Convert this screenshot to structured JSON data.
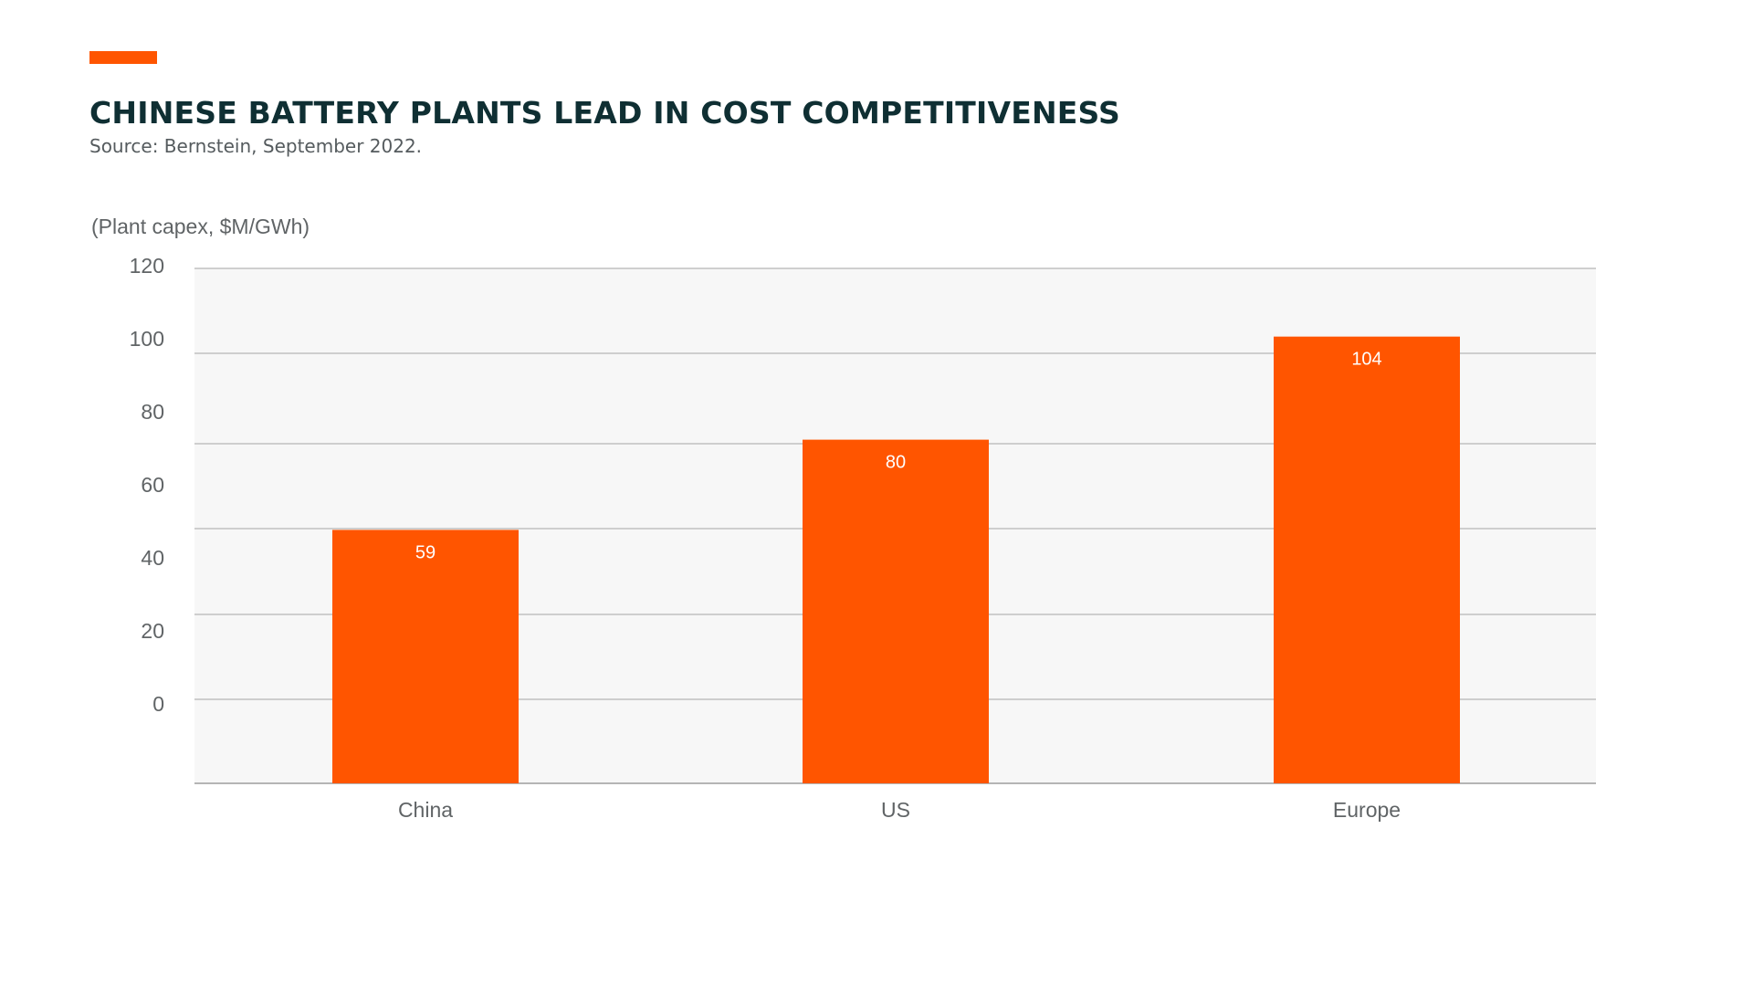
{
  "header": {
    "title": "CHINESE BATTERY PLANTS LEAD IN COST COMPETITIVENESS",
    "source": "Source: Bernstein, September 2022."
  },
  "colors": {
    "accent": "#ff5500",
    "bar": "#ff5500",
    "title": "#0f2f33",
    "plot_background": "#f7f7f7",
    "gridline": "#b5b5b5",
    "tick_text": "#606466",
    "data_label_text": "#ffffff"
  },
  "chart_data": {
    "type": "bar",
    "title": "CHINESE BATTERY PLANTS LEAD IN COST COMPETITIVENESS",
    "subtitle": "Source: Bernstein, September 2022.",
    "ylabel": "(Plant capex, $M/GWh)",
    "xlabel": "",
    "categories": [
      "China",
      "US",
      "Europe"
    ],
    "values": [
      59,
      80,
      104
    ],
    "data_labels": [
      "59",
      "80",
      "104"
    ],
    "ylim": [
      0,
      120
    ],
    "yticks": [
      0,
      20,
      40,
      60,
      80,
      100,
      120
    ],
    "grid": true,
    "legend": "none"
  }
}
